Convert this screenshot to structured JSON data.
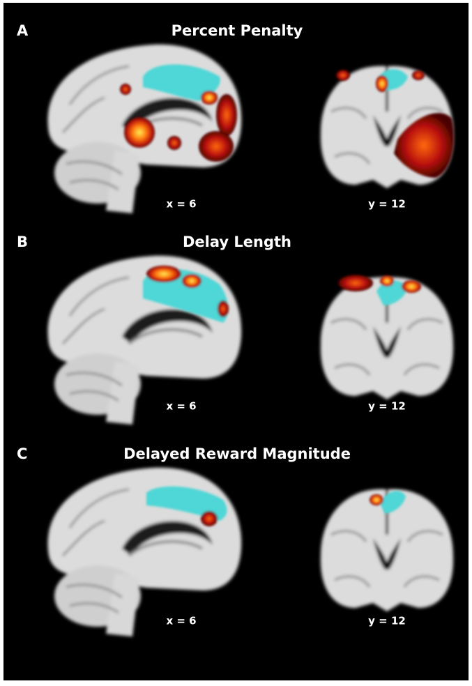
{
  "panels": [
    {
      "letter": "A",
      "title": "Percent Penalty",
      "sagittal_label": "x = 6",
      "coronal_label": "y = 12"
    },
    {
      "letter": "B",
      "title": "Delay Length",
      "sagittal_label": "x = 6",
      "coronal_label": "y = 12"
    },
    {
      "letter": "C",
      "title": "Delayed Reward Magnitude",
      "sagittal_label": "x = 6",
      "coronal_label": "y = 12"
    }
  ]
}
